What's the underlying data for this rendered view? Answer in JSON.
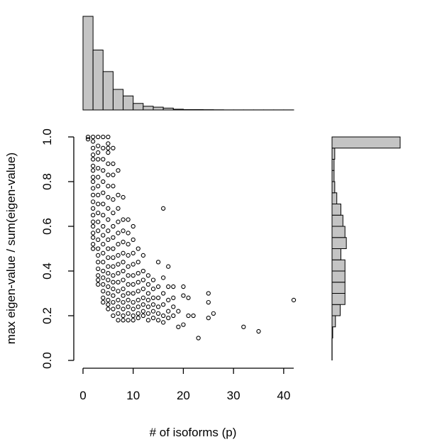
{
  "chart_data": {
    "type": "scatter",
    "xlabel": "# of isoforms (p)",
    "ylabel": "max eigen-value / sum(eigen-value)",
    "xlim": [
      0,
      42
    ],
    "ylim": [
      0,
      1
    ],
    "x_ticks": [
      0,
      10,
      20,
      30,
      40
    ],
    "y_ticks": [
      "0.0",
      "0.2",
      "0.4",
      "0.6",
      "0.8",
      "1.0"
    ],
    "marker": "open-circle",
    "bar_color": "#c4c4c4",
    "points": [
      [
        1,
        1.0
      ],
      [
        1,
        0.99
      ],
      [
        2,
        1.0
      ],
      [
        2,
        0.98
      ],
      [
        2,
        0.95
      ],
      [
        2,
        0.92
      ],
      [
        2,
        0.9
      ],
      [
        2,
        0.87
      ],
      [
        2,
        0.85
      ],
      [
        2,
        0.82
      ],
      [
        2,
        0.8
      ],
      [
        2,
        0.77
      ],
      [
        2,
        0.74
      ],
      [
        2,
        0.71
      ],
      [
        2,
        0.68
      ],
      [
        2,
        0.65
      ],
      [
        2,
        0.62
      ],
      [
        2,
        0.6
      ],
      [
        2,
        0.57
      ],
      [
        2,
        0.55
      ],
      [
        2,
        0.52
      ],
      [
        2,
        0.5
      ],
      [
        3,
        1.0
      ],
      [
        3,
        0.96
      ],
      [
        3,
        0.93
      ],
      [
        3,
        0.9
      ],
      [
        3,
        0.86
      ],
      [
        3,
        0.82
      ],
      [
        3,
        0.78
      ],
      [
        3,
        0.74
      ],
      [
        3,
        0.7
      ],
      [
        3,
        0.66
      ],
      [
        3,
        0.62
      ],
      [
        3,
        0.58
      ],
      [
        3,
        0.54
      ],
      [
        3,
        0.5
      ],
      [
        3,
        0.47
      ],
      [
        3,
        0.44
      ],
      [
        3,
        0.41
      ],
      [
        3,
        0.38
      ],
      [
        3,
        0.36
      ],
      [
        3,
        0.34
      ],
      [
        4,
        1.0
      ],
      [
        4,
        0.95
      ],
      [
        4,
        0.9
      ],
      [
        4,
        0.85
      ],
      [
        4,
        0.8
      ],
      [
        4,
        0.75
      ],
      [
        4,
        0.7
      ],
      [
        4,
        0.65
      ],
      [
        4,
        0.6
      ],
      [
        4,
        0.56
      ],
      [
        4,
        0.52
      ],
      [
        4,
        0.48
      ],
      [
        4,
        0.44
      ],
      [
        4,
        0.4
      ],
      [
        4,
        0.37
      ],
      [
        4,
        0.34
      ],
      [
        4,
        0.31
      ],
      [
        4,
        0.28
      ],
      [
        4,
        0.26
      ],
      [
        5,
        1.0
      ],
      [
        5,
        0.97
      ],
      [
        5,
        0.95
      ],
      [
        5,
        0.93
      ],
      [
        5,
        0.88
      ],
      [
        5,
        0.83
      ],
      [
        5,
        0.78
      ],
      [
        5,
        0.73
      ],
      [
        5,
        0.68
      ],
      [
        5,
        0.63
      ],
      [
        5,
        0.58
      ],
      [
        5,
        0.54
      ],
      [
        5,
        0.5
      ],
      [
        5,
        0.46
      ],
      [
        5,
        0.42
      ],
      [
        5,
        0.39
      ],
      [
        5,
        0.36
      ],
      [
        5,
        0.33
      ],
      [
        5,
        0.3
      ],
      [
        5,
        0.27
      ],
      [
        5,
        0.25
      ],
      [
        5,
        0.23
      ],
      [
        6,
        0.95
      ],
      [
        6,
        0.88
      ],
      [
        6,
        0.83
      ],
      [
        6,
        0.78
      ],
      [
        6,
        0.72
      ],
      [
        6,
        0.66
      ],
      [
        6,
        0.6
      ],
      [
        6,
        0.55
      ],
      [
        6,
        0.5
      ],
      [
        6,
        0.46
      ],
      [
        6,
        0.42
      ],
      [
        6,
        0.38
      ],
      [
        6,
        0.35
      ],
      [
        6,
        0.32
      ],
      [
        6,
        0.29
      ],
      [
        6,
        0.26
      ],
      [
        6,
        0.23
      ],
      [
        6,
        0.2
      ],
      [
        7,
        0.85
      ],
      [
        7,
        0.74
      ],
      [
        7,
        0.68
      ],
      [
        7,
        0.62
      ],
      [
        7,
        0.57
      ],
      [
        7,
        0.52
      ],
      [
        7,
        0.47
      ],
      [
        7,
        0.43
      ],
      [
        7,
        0.39
      ],
      [
        7,
        0.35
      ],
      [
        7,
        0.31
      ],
      [
        7,
        0.27
      ],
      [
        7,
        0.24
      ],
      [
        7,
        0.21
      ],
      [
        7,
        0.18
      ],
      [
        8,
        0.73
      ],
      [
        8,
        0.63
      ],
      [
        8,
        0.58
      ],
      [
        8,
        0.53
      ],
      [
        8,
        0.48
      ],
      [
        8,
        0.44
      ],
      [
        8,
        0.4
      ],
      [
        8,
        0.36
      ],
      [
        8,
        0.32
      ],
      [
        8,
        0.29
      ],
      [
        8,
        0.26
      ],
      [
        8,
        0.23
      ],
      [
        8,
        0.2
      ],
      [
        8,
        0.18
      ],
      [
        9,
        0.63
      ],
      [
        9,
        0.57
      ],
      [
        9,
        0.52
      ],
      [
        9,
        0.47
      ],
      [
        9,
        0.42
      ],
      [
        9,
        0.38
      ],
      [
        9,
        0.34
      ],
      [
        9,
        0.3
      ],
      [
        9,
        0.27
      ],
      [
        9,
        0.24
      ],
      [
        9,
        0.21
      ],
      [
        9,
        0.18
      ],
      [
        10,
        0.6
      ],
      [
        10,
        0.54
      ],
      [
        10,
        0.48
      ],
      [
        10,
        0.43
      ],
      [
        10,
        0.38
      ],
      [
        10,
        0.34
      ],
      [
        10,
        0.3
      ],
      [
        10,
        0.26
      ],
      [
        10,
        0.23
      ],
      [
        10,
        0.2
      ],
      [
        10,
        0.18
      ],
      [
        11,
        0.5
      ],
      [
        11,
        0.44
      ],
      [
        11,
        0.39
      ],
      [
        11,
        0.35
      ],
      [
        11,
        0.31
      ],
      [
        11,
        0.27
      ],
      [
        11,
        0.24
      ],
      [
        11,
        0.21
      ],
      [
        11,
        0.19
      ],
      [
        12,
        0.47
      ],
      [
        12,
        0.4
      ],
      [
        12,
        0.36
      ],
      [
        12,
        0.32
      ],
      [
        12,
        0.28
      ],
      [
        12,
        0.25
      ],
      [
        12,
        0.22
      ],
      [
        12,
        0.2
      ],
      [
        13,
        0.38
      ],
      [
        13,
        0.34
      ],
      [
        13,
        0.3
      ],
      [
        13,
        0.27
      ],
      [
        13,
        0.24
      ],
      [
        13,
        0.21
      ],
      [
        13,
        0.18
      ],
      [
        14,
        0.36
      ],
      [
        14,
        0.32
      ],
      [
        14,
        0.28
      ],
      [
        14,
        0.25
      ],
      [
        14,
        0.22
      ],
      [
        14,
        0.19
      ],
      [
        15,
        0.44
      ],
      [
        15,
        0.33
      ],
      [
        15,
        0.28
      ],
      [
        15,
        0.24
      ],
      [
        15,
        0.21
      ],
      [
        15,
        0.18
      ],
      [
        16,
        0.68
      ],
      [
        16,
        0.37
      ],
      [
        16,
        0.3
      ],
      [
        16,
        0.25
      ],
      [
        16,
        0.2
      ],
      [
        16,
        0.17
      ],
      [
        17,
        0.42
      ],
      [
        17,
        0.33
      ],
      [
        17,
        0.27
      ],
      [
        17,
        0.22
      ],
      [
        17,
        0.19
      ],
      [
        18,
        0.33
      ],
      [
        18,
        0.28
      ],
      [
        18,
        0.24
      ],
      [
        18,
        0.2
      ],
      [
        19,
        0.15
      ],
      [
        19,
        0.22
      ],
      [
        20,
        0.33
      ],
      [
        20,
        0.29
      ],
      [
        20,
        0.16
      ],
      [
        21,
        0.28
      ],
      [
        21,
        0.2
      ],
      [
        22,
        0.2
      ],
      [
        23,
        0.1
      ],
      [
        25,
        0.3
      ],
      [
        25,
        0.26
      ],
      [
        25,
        0.19
      ],
      [
        26,
        0.21
      ],
      [
        32,
        0.15
      ],
      [
        35,
        0.13
      ],
      [
        42,
        0.27
      ]
    ],
    "top_histogram": {
      "bin_width": 2,
      "bins": [
        {
          "start": 0,
          "freq": 100
        },
        {
          "start": 2,
          "freq": 64
        },
        {
          "start": 4,
          "freq": 41
        },
        {
          "start": 6,
          "freq": 22
        },
        {
          "start": 8,
          "freq": 15
        },
        {
          "start": 10,
          "freq": 7
        },
        {
          "start": 12,
          "freq": 4
        },
        {
          "start": 14,
          "freq": 3
        },
        {
          "start": 16,
          "freq": 2
        },
        {
          "start": 18,
          "freq": 0.8
        },
        {
          "start": 20,
          "freq": 0.4
        },
        {
          "start": 22,
          "freq": 0.4
        },
        {
          "start": 24,
          "freq": 0.3
        },
        {
          "start": 26,
          "freq": 0.2
        },
        {
          "start": 28,
          "freq": 0.1
        },
        {
          "start": 30,
          "freq": 0.1
        },
        {
          "start": 32,
          "freq": 0.1
        },
        {
          "start": 34,
          "freq": 0.1
        },
        {
          "start": 36,
          "freq": 0.1
        },
        {
          "start": 38,
          "freq": 0.1
        },
        {
          "start": 40,
          "freq": 0.1
        }
      ]
    },
    "right_histogram": {
      "bin_width": 0.05,
      "bins": [
        {
          "start": 0.1,
          "freq": 1
        },
        {
          "start": 0.15,
          "freq": 5
        },
        {
          "start": 0.2,
          "freq": 12
        },
        {
          "start": 0.25,
          "freq": 19
        },
        {
          "start": 0.3,
          "freq": 19
        },
        {
          "start": 0.35,
          "freq": 19
        },
        {
          "start": 0.4,
          "freq": 19
        },
        {
          "start": 0.45,
          "freq": 13
        },
        {
          "start": 0.5,
          "freq": 21
        },
        {
          "start": 0.55,
          "freq": 19
        },
        {
          "start": 0.6,
          "freq": 16
        },
        {
          "start": 0.65,
          "freq": 13
        },
        {
          "start": 0.7,
          "freq": 7
        },
        {
          "start": 0.75,
          "freq": 4
        },
        {
          "start": 0.8,
          "freq": 3
        },
        {
          "start": 0.85,
          "freq": 3
        },
        {
          "start": 0.9,
          "freq": 4
        },
        {
          "start": 0.95,
          "freq": 100
        }
      ]
    }
  }
}
